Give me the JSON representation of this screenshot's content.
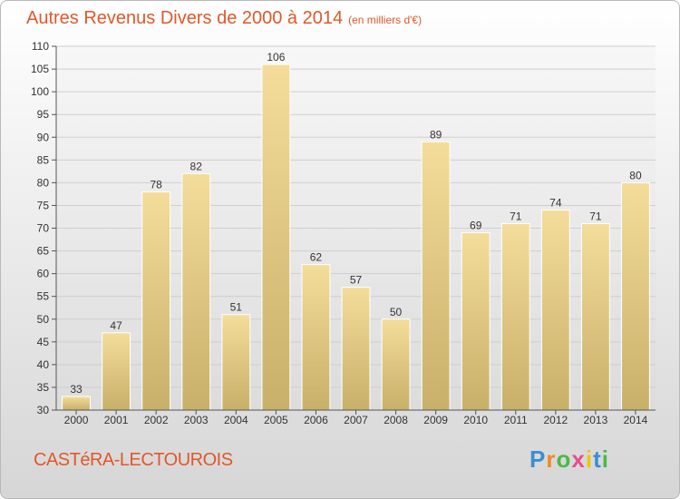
{
  "title": "Autres Revenus Divers de 2000 à 2014",
  "unit_note": "(en milliers d'€)",
  "commune": "CASTéRA-LECTOUROIS",
  "logo": {
    "letters": [
      "P",
      "r",
      "o",
      "x",
      "i",
      "t",
      "i"
    ]
  },
  "colors": {
    "title": "#e0582a",
    "bar_light": "#f4dc9a",
    "bar_dark": "#c8b06a"
  },
  "chart_data": {
    "type": "bar",
    "title": "Autres Revenus Divers de 2000 à 2014",
    "categories": [
      "2000",
      "2001",
      "2002",
      "2003",
      "2004",
      "2005",
      "2006",
      "2007",
      "2008",
      "2009",
      "2010",
      "2011",
      "2012",
      "2013",
      "2014"
    ],
    "values": [
      33,
      47,
      78,
      82,
      51,
      106,
      62,
      57,
      50,
      89,
      69,
      71,
      74,
      71,
      80
    ],
    "ylim": [
      30,
      110
    ],
    "yticks": [
      30,
      35,
      40,
      45,
      50,
      55,
      60,
      65,
      70,
      75,
      80,
      85,
      90,
      95,
      100,
      105,
      110
    ],
    "grid": true,
    "xlabel": "",
    "ylabel": ""
  }
}
